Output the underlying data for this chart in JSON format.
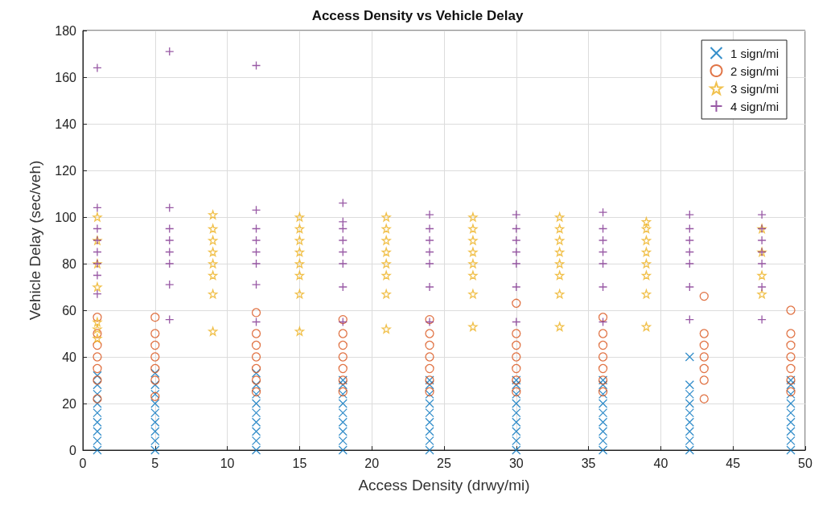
{
  "chart_data": {
    "type": "scatter",
    "title": "Access Density vs Vehicle Delay",
    "xlabel": "Access Density (drwy/mi)",
    "ylabel": "Vehicle Delay (sec/veh)",
    "xlim": [
      0,
      50
    ],
    "ylim": [
      0,
      180
    ],
    "xticks": [
      0,
      5,
      10,
      15,
      20,
      25,
      30,
      35,
      40,
      45,
      50
    ],
    "yticks": [
      0,
      20,
      40,
      60,
      80,
      100,
      120,
      140,
      160,
      180
    ],
    "grid": true,
    "legend": "top right",
    "series": [
      {
        "name": "1 sign/mi",
        "color": "#0072bd",
        "marker": "x",
        "x": [
          1,
          1,
          1,
          1,
          1,
          1,
          1,
          1,
          1,
          5,
          5,
          5,
          5,
          5,
          5,
          5,
          5,
          5,
          12,
          12,
          12,
          12,
          12,
          12,
          12,
          12,
          12,
          18,
          18,
          18,
          18,
          18,
          18,
          18,
          18,
          18,
          24,
          24,
          24,
          24,
          24,
          24,
          24,
          24,
          24,
          30,
          30,
          30,
          30,
          30,
          30,
          30,
          30,
          30,
          36,
          36,
          36,
          36,
          36,
          36,
          36,
          36,
          36,
          42,
          42,
          42,
          42,
          42,
          42,
          42,
          42,
          42,
          49,
          49,
          49,
          49,
          49,
          49,
          49,
          49,
          49
        ],
        "values": [
          0,
          4,
          8,
          12,
          16,
          20,
          24,
          28,
          32,
          0,
          4,
          8,
          12,
          16,
          20,
          24,
          28,
          33,
          0,
          4,
          8,
          12,
          16,
          20,
          24,
          28,
          33,
          0,
          4,
          8,
          12,
          16,
          20,
          24,
          28,
          30,
          0,
          4,
          8,
          12,
          16,
          20,
          24,
          28,
          30,
          0,
          4,
          8,
          12,
          16,
          20,
          24,
          28,
          30,
          0,
          4,
          8,
          12,
          16,
          20,
          24,
          28,
          30,
          0,
          4,
          8,
          12,
          16,
          20,
          24,
          28,
          40,
          0,
          4,
          8,
          12,
          16,
          20,
          24,
          28,
          30
        ]
      },
      {
        "name": "2 sign/mi",
        "color": "#d95319",
        "marker": "circle",
        "x": [
          1,
          1,
          1,
          1,
          1,
          1,
          1,
          5,
          5,
          5,
          5,
          5,
          5,
          5,
          12,
          12,
          12,
          12,
          12,
          12,
          12,
          18,
          18,
          18,
          18,
          18,
          18,
          18,
          24,
          24,
          24,
          24,
          24,
          24,
          24,
          30,
          30,
          30,
          30,
          30,
          30,
          30,
          36,
          36,
          36,
          36,
          36,
          36,
          36,
          43,
          43,
          43,
          43,
          43,
          43,
          43,
          49,
          49,
          49,
          49,
          49,
          49,
          49
        ],
        "values": [
          22,
          30,
          35,
          40,
          45,
          50,
          57,
          23,
          30,
          35,
          40,
          45,
          50,
          57,
          25,
          30,
          35,
          40,
          45,
          50,
          59,
          25,
          30,
          35,
          40,
          45,
          50,
          56,
          25,
          30,
          35,
          40,
          45,
          50,
          56,
          25,
          30,
          35,
          40,
          45,
          50,
          63,
          25,
          30,
          35,
          40,
          45,
          50,
          57,
          22,
          30,
          35,
          40,
          45,
          50,
          66,
          25,
          30,
          35,
          40,
          45,
          50,
          60
        ]
      },
      {
        "name": "3 sign/mi",
        "color": "#edb120",
        "marker": "star",
        "x": [
          1,
          1,
          1,
          1,
          1,
          1,
          1,
          9,
          9,
          9,
          9,
          9,
          9,
          9,
          9,
          15,
          15,
          15,
          15,
          15,
          15,
          15,
          15,
          21,
          21,
          21,
          21,
          21,
          21,
          21,
          21,
          27,
          27,
          27,
          27,
          27,
          27,
          27,
          27,
          33,
          33,
          33,
          33,
          33,
          33,
          33,
          33,
          39,
          39,
          39,
          39,
          39,
          39,
          39,
          39,
          47,
          47,
          47,
          47
        ],
        "values": [
          48,
          52,
          55,
          70,
          80,
          90,
          100,
          51,
          67,
          75,
          80,
          85,
          90,
          95,
          101,
          51,
          67,
          75,
          80,
          85,
          90,
          95,
          100,
          52,
          67,
          75,
          80,
          85,
          90,
          95,
          100,
          53,
          67,
          75,
          80,
          85,
          90,
          95,
          100,
          53,
          67,
          75,
          80,
          85,
          90,
          95,
          100,
          53,
          67,
          75,
          80,
          85,
          90,
          95,
          98,
          67,
          75,
          85,
          95
        ]
      },
      {
        "name": "4 sign/mi",
        "color": "#7e2f8e",
        "marker": "cross",
        "x": [
          1,
          1,
          1,
          1,
          1,
          1,
          1,
          1,
          6,
          6,
          6,
          6,
          6,
          6,
          6,
          6,
          12,
          12,
          12,
          12,
          12,
          12,
          12,
          12,
          18,
          18,
          18,
          18,
          18,
          18,
          18,
          18,
          24,
          24,
          24,
          24,
          24,
          24,
          24,
          30,
          30,
          30,
          30,
          30,
          30,
          30,
          36,
          36,
          36,
          36,
          36,
          36,
          36,
          42,
          42,
          42,
          42,
          42,
          42,
          42,
          47,
          47,
          47,
          47,
          47,
          47,
          47
        ],
        "values": [
          164,
          67,
          75,
          80,
          85,
          90,
          95,
          104,
          171,
          56,
          71,
          80,
          85,
          90,
          95,
          104,
          165,
          55,
          71,
          80,
          85,
          90,
          95,
          103,
          106,
          55,
          70,
          80,
          85,
          90,
          95,
          98,
          55,
          70,
          80,
          85,
          90,
          95,
          101,
          55,
          70,
          80,
          85,
          90,
          95,
          101,
          55,
          70,
          80,
          85,
          90,
          95,
          102,
          56,
          70,
          80,
          85,
          90,
          95,
          101,
          56,
          70,
          80,
          85,
          90,
          95,
          101
        ]
      }
    ]
  }
}
